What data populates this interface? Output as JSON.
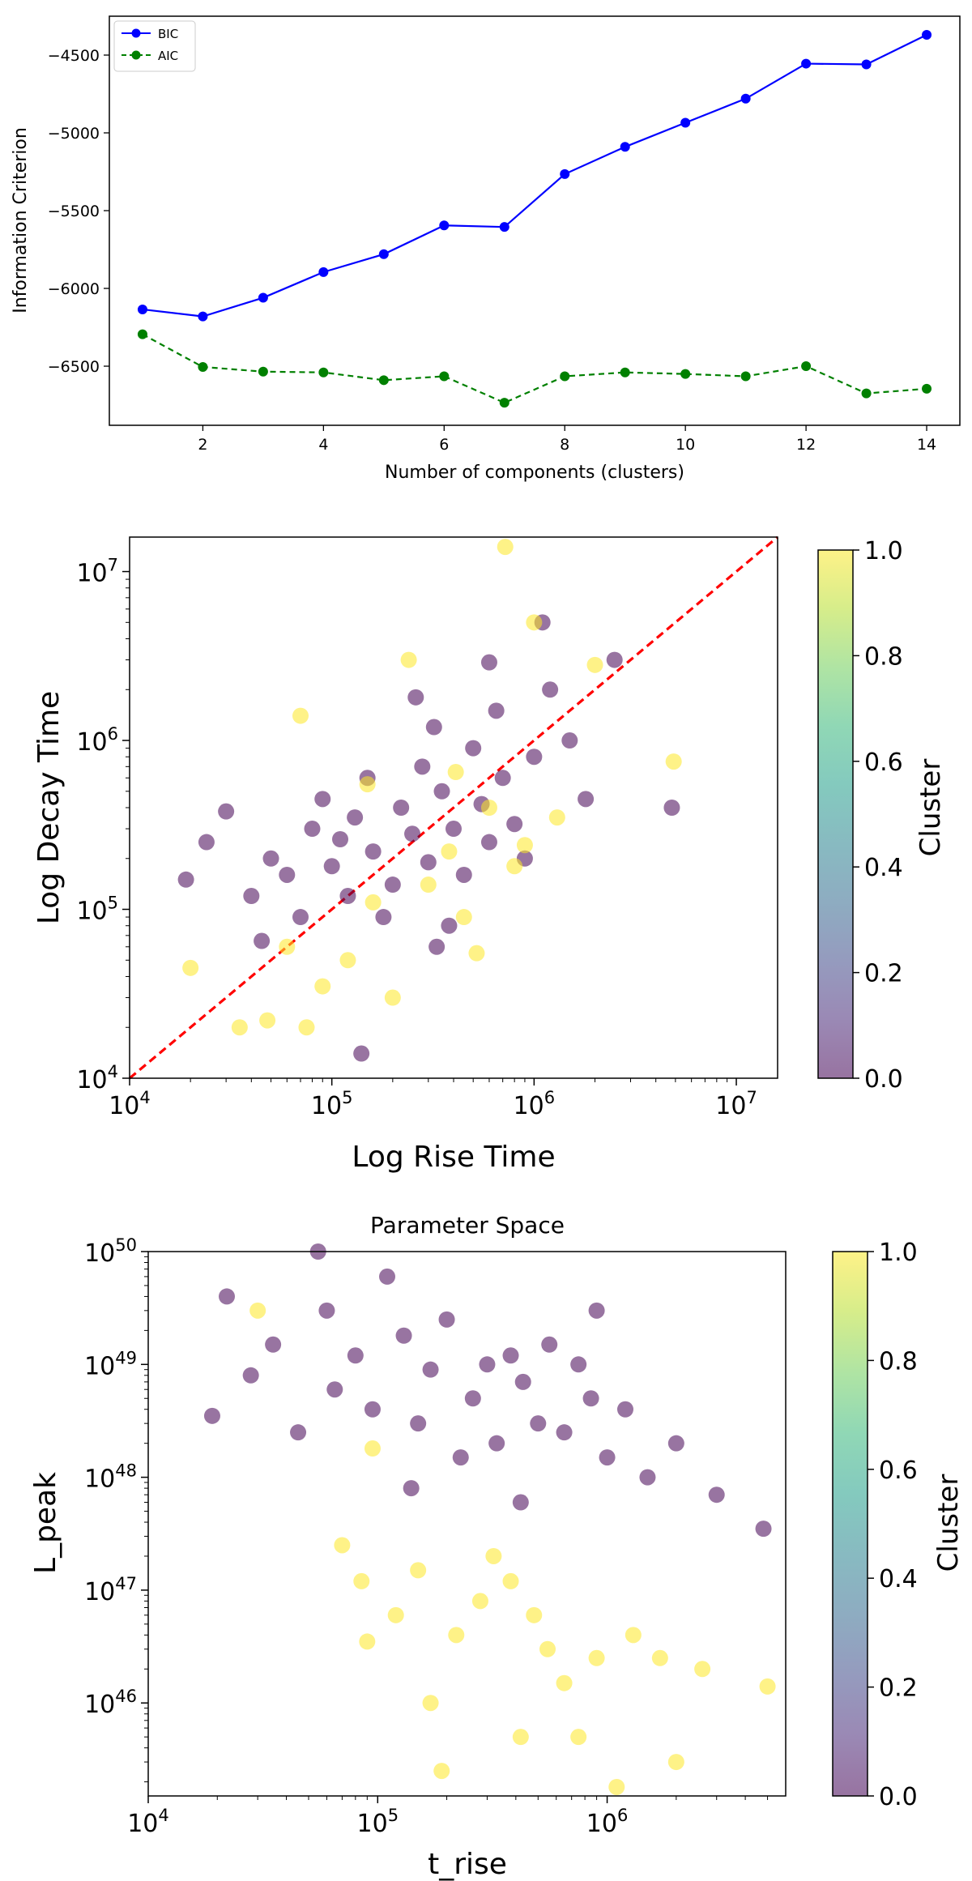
{
  "chart_data": [
    {
      "type": "line",
      "title": "",
      "xlabel": "Number of components (clusters)",
      "ylabel": "Information Criterion",
      "xlim": [
        0.45,
        14.55
      ],
      "ylim": [
        -6880,
        -4250
      ],
      "xticks": [
        2,
        4,
        6,
        8,
        10,
        12,
        14
      ],
      "yticks": [
        -6500,
        -6000,
        -5500,
        -5000,
        -4500
      ],
      "ytick_labels": [
        "−6500",
        "−6000",
        "−5500",
        "−5000",
        "−4500"
      ],
      "legend_position": "upper-left",
      "x": [
        1,
        2,
        3,
        4,
        5,
        6,
        7,
        8,
        9,
        10,
        11,
        12,
        13,
        14
      ],
      "series": [
        {
          "name": "BIC",
          "color": "#0000ff",
          "linestyle": "solid",
          "values": [
            -6135,
            -6180,
            -6060,
            -5895,
            -5780,
            -5595,
            -5605,
            -5265,
            -5090,
            -4935,
            -4780,
            -4555,
            -4560,
            -4370
          ]
        },
        {
          "name": "AIC",
          "color": "#008000",
          "linestyle": "dashed",
          "values": [
            -6295,
            -6505,
            -6535,
            -6540,
            -6590,
            -6565,
            -6735,
            -6565,
            -6540,
            -6550,
            -6565,
            -6500,
            -6675,
            -6645
          ]
        }
      ]
    },
    {
      "type": "scatter",
      "title": "",
      "xlabel": "Log Rise Time",
      "ylabel": "Log Decay Time",
      "xscale": "log",
      "yscale": "log",
      "xlim": [
        10000,
        16000000
      ],
      "ylim": [
        10000,
        16000000
      ],
      "xticks": [
        {
          "base": "10",
          "exp": "4",
          "value": 10000
        },
        {
          "base": "10",
          "exp": "5",
          "value": 100000
        },
        {
          "base": "10",
          "exp": "6",
          "value": 1000000
        },
        {
          "base": "10",
          "exp": "7",
          "value": 10000000
        }
      ],
      "yticks": [
        {
          "base": "10",
          "exp": "4",
          "value": 10000
        },
        {
          "base": "10",
          "exp": "5",
          "value": 100000
        },
        {
          "base": "10",
          "exp": "6",
          "value": 1000000
        },
        {
          "base": "10",
          "exp": "7",
          "value": 10000000
        }
      ],
      "reference_line": {
        "label": "y = x",
        "color": "#ff0000",
        "linestyle": "dashed"
      },
      "colorbar": {
        "label": "Cluster",
        "range": [
          0.0,
          1.0
        ],
        "ticks": [
          "0.0",
          "0.2",
          "0.4",
          "0.6",
          "0.8",
          "1.0"
        ],
        "colors": [
          "#440154",
          "#482878",
          "#3e4989",
          "#31688e",
          "#26828e",
          "#1f9e89",
          "#35b779",
          "#6ece58",
          "#b5de2b",
          "#fde725"
        ],
        "alpha": 0.55
      },
      "series": [
        {
          "name": "Cluster 0",
          "color": "#440154",
          "points": [
            [
              19000,
              150000
            ],
            [
              24000,
              250000
            ],
            [
              30000,
              380000
            ],
            [
              40000,
              120000
            ],
            [
              50000,
              200000
            ],
            [
              60000,
              160000
            ],
            [
              70000,
              90000
            ],
            [
              80000,
              300000
            ],
            [
              90000,
              450000
            ],
            [
              100000,
              180000
            ],
            [
              110000,
              260000
            ],
            [
              120000,
              120000
            ],
            [
              130000,
              350000
            ],
            [
              150000,
              600000
            ],
            [
              160000,
              220000
            ],
            [
              180000,
              90000
            ],
            [
              200000,
              140000
            ],
            [
              220000,
              400000
            ],
            [
              250000,
              280000
            ],
            [
              280000,
              700000
            ],
            [
              300000,
              190000
            ],
            [
              320000,
              1200000
            ],
            [
              350000,
              500000
            ],
            [
              380000,
              80000
            ],
            [
              400000,
              300000
            ],
            [
              450000,
              160000
            ],
            [
              500000,
              900000
            ],
            [
              550000,
              420000
            ],
            [
              600000,
              250000
            ],
            [
              650000,
              1500000
            ],
            [
              700000,
              600000
            ],
            [
              800000,
              320000
            ],
            [
              900000,
              200000
            ],
            [
              1000000,
              800000
            ],
            [
              1100000,
              5000000
            ],
            [
              1200000,
              2000000
            ],
            [
              1500000,
              1000000
            ],
            [
              1800000,
              450000
            ],
            [
              2500000,
              3000000
            ],
            [
              4800000,
              400000
            ],
            [
              45000,
              65000
            ],
            [
              140000,
              14000
            ],
            [
              260000,
              1800000
            ],
            [
              600000,
              2900000
            ],
            [
              330000,
              60000
            ]
          ]
        },
        {
          "name": "Cluster 1",
          "color": "#fde725",
          "points": [
            [
              20000,
              45000
            ],
            [
              35000,
              20000
            ],
            [
              48000,
              22000
            ],
            [
              60000,
              60000
            ],
            [
              75000,
              20000
            ],
            [
              90000,
              35000
            ],
            [
              120000,
              50000
            ],
            [
              160000,
              110000
            ],
            [
              200000,
              30000
            ],
            [
              240000,
              3000000
            ],
            [
              300000,
              140000
            ],
            [
              380000,
              220000
            ],
            [
              450000,
              90000
            ],
            [
              520000,
              55000
            ],
            [
              600000,
              400000
            ],
            [
              720000,
              14000000
            ],
            [
              800000,
              180000
            ],
            [
              1000000,
              5000000
            ],
            [
              1300000,
              350000
            ],
            [
              2000000,
              2800000
            ],
            [
              4900000,
              750000
            ],
            [
              70000,
              1400000
            ],
            [
              150000,
              550000
            ],
            [
              410000,
              650000
            ],
            [
              900000,
              240000
            ]
          ]
        }
      ]
    },
    {
      "type": "scatter",
      "title": "Parameter Space",
      "xlabel": "t_rise",
      "ylabel": "L_peak",
      "xscale": "log",
      "yscale": "log",
      "xlim": [
        10000,
        6000000
      ],
      "ylim": [
        1.5e+45,
        1e+50
      ],
      "xticks": [
        {
          "base": "10",
          "exp": "4",
          "value": 10000
        },
        {
          "base": "10",
          "exp": "5",
          "value": 100000
        },
        {
          "base": "10",
          "exp": "6",
          "value": 1000000
        }
      ],
      "yticks": [
        {
          "base": "10",
          "exp": "46",
          "value": 1e+46
        },
        {
          "base": "10",
          "exp": "47",
          "value": 1e+47
        },
        {
          "base": "10",
          "exp": "48",
          "value": 1e+48
        },
        {
          "base": "10",
          "exp": "49",
          "value": 1e+49
        },
        {
          "base": "10",
          "exp": "50",
          "value": 1e+50
        }
      ],
      "colorbar": {
        "label": "Cluster",
        "range": [
          0.0,
          1.0
        ],
        "ticks": [
          "0.0",
          "0.2",
          "0.4",
          "0.6",
          "0.8",
          "1.0"
        ],
        "colors": [
          "#440154",
          "#482878",
          "#3e4989",
          "#31688e",
          "#26828e",
          "#1f9e89",
          "#35b779",
          "#6ece58",
          "#b5de2b",
          "#fde725"
        ],
        "alpha": 0.55
      },
      "series": [
        {
          "name": "Cluster 0",
          "color": "#440154",
          "points": [
            [
              19000,
              3.5e+48
            ],
            [
              22000,
              4e+49
            ],
            [
              28000,
              8e+48
            ],
            [
              35000,
              1.5e+49
            ],
            [
              45000,
              2.5e+48
            ],
            [
              55000,
              1e+50
            ],
            [
              65000,
              6e+48
            ],
            [
              80000,
              1.2e+49
            ],
            [
              95000,
              4e+48
            ],
            [
              110000,
              6e+49
            ],
            [
              130000,
              1.8e+49
            ],
            [
              150000,
              3e+48
            ],
            [
              170000,
              9e+48
            ],
            [
              200000,
              2.5e+49
            ],
            [
              230000,
              1.5e+48
            ],
            [
              260000,
              5e+48
            ],
            [
              300000,
              1e+49
            ],
            [
              330000,
              2e+48
            ],
            [
              380000,
              1.2e+49
            ],
            [
              430000,
              7e+48
            ],
            [
              500000,
              3e+48
            ],
            [
              560000,
              1.5e+49
            ],
            [
              650000,
              2.5e+48
            ],
            [
              750000,
              1e+49
            ],
            [
              850000,
              5e+48
            ],
            [
              1000000,
              1.5e+48
            ],
            [
              1200000,
              4e+48
            ],
            [
              1500000,
              1e+48
            ],
            [
              2000000,
              2e+48
            ],
            [
              3000000,
              7e+47
            ],
            [
              4800000,
              3.5e+47
            ],
            [
              60000,
              3e+49
            ],
            [
              140000,
              8e+47
            ],
            [
              420000,
              6e+47
            ],
            [
              900000,
              3e+49
            ]
          ]
        },
        {
          "name": "Cluster 1",
          "color": "#fde725",
          "points": [
            [
              70000,
              2.5e+47
            ],
            [
              85000,
              1.2e+47
            ],
            [
              90000,
              3.5e+46
            ],
            [
              120000,
              6e+46
            ],
            [
              150000,
              1.5e+47
            ],
            [
              170000,
              1e+46
            ],
            [
              190000,
              2.5e+45
            ],
            [
              220000,
              4e+46
            ],
            [
              280000,
              8e+46
            ],
            [
              320000,
              2e+47
            ],
            [
              380000,
              1.2e+47
            ],
            [
              420000,
              5e+45
            ],
            [
              480000,
              6e+46
            ],
            [
              550000,
              3e+46
            ],
            [
              650000,
              1.5e+46
            ],
            [
              750000,
              5e+45
            ],
            [
              900000,
              2.5e+46
            ],
            [
              1100000,
              1.8e+45
            ],
            [
              1300000,
              4e+46
            ],
            [
              1700000,
              2.5e+46
            ],
            [
              2000000,
              3e+45
            ],
            [
              2600000,
              2e+46
            ],
            [
              5000000,
              1.4e+46
            ],
            [
              30000,
              3e+49
            ],
            [
              95000,
              1.8e+48
            ]
          ]
        }
      ]
    }
  ]
}
